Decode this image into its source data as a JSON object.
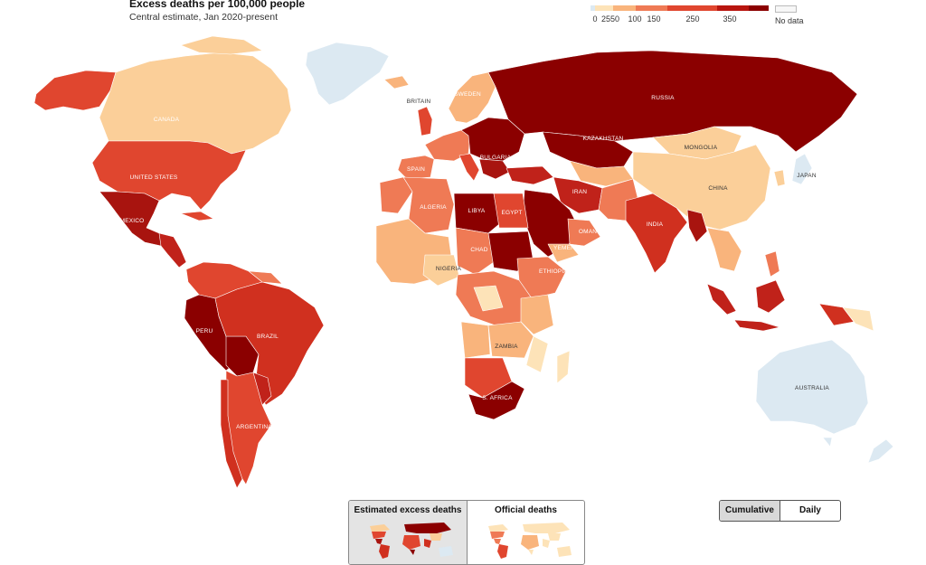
{
  "title": "Excess deaths per 100,000 people",
  "subtitle": "Central estimate, Jan 2020-present",
  "legend": {
    "ticks": [
      "0",
      "25",
      "50",
      "100",
      "150",
      "250",
      "350"
    ],
    "colors": [
      "#dce9f2",
      "#fde3b8",
      "#f9b47c",
      "#ef7a55",
      "#e0462f",
      "#b8150f",
      "#8b0000"
    ],
    "no_data_label": "No data"
  },
  "country_labels": [
    "CANADA",
    "UNITED STATES",
    "MEXICO",
    "BRITAIN",
    "SWEDEN",
    "RUSSIA",
    "KAZAKHSTAN",
    "MONGOLIA",
    "CHINA",
    "JAPAN",
    "SPAIN",
    "BULGARIA",
    "ALGERIA",
    "LIBYA",
    "EGYPT",
    "IRAN",
    "INDIA",
    "OMAN",
    "YEMEN",
    "CHAD",
    "NIGERIA",
    "ETHIOPIA",
    "ZAMBIA",
    "S. AFRICA",
    "PERU",
    "BRAZIL",
    "ARGENTINA",
    "AUSTRALIA"
  ],
  "toggles": {
    "view": [
      "Estimated excess deaths",
      "Official deaths"
    ],
    "view_active": "Estimated excess deaths",
    "period": [
      "Cumulative",
      "Daily"
    ],
    "period_active": "Cumulative"
  }
}
